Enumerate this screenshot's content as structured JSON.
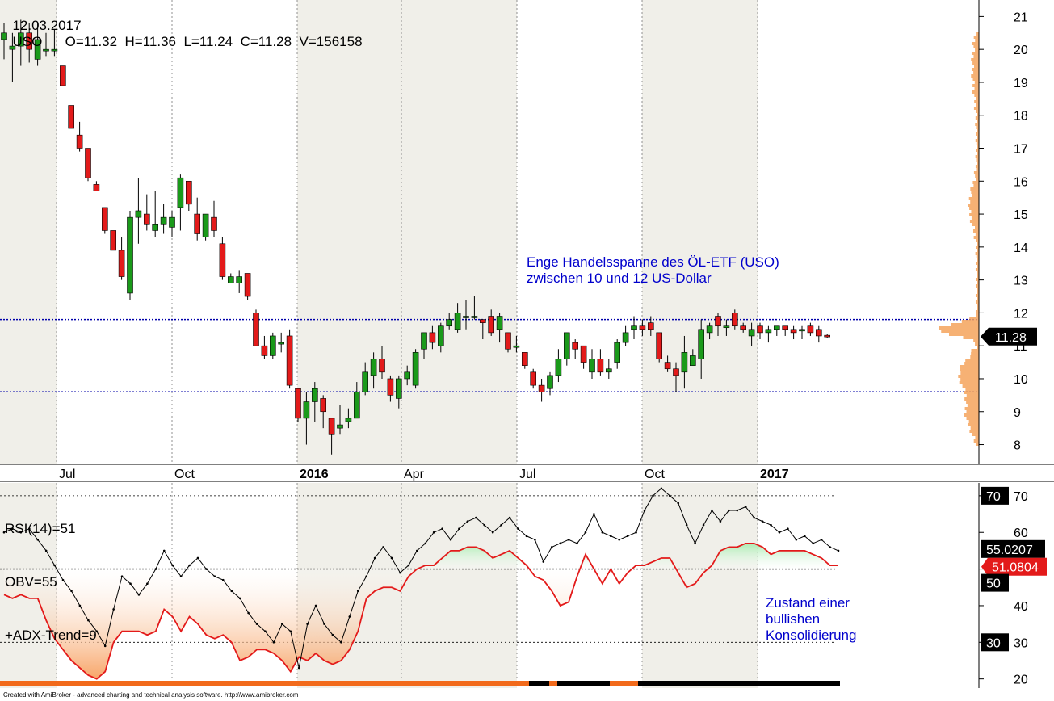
{
  "header": {
    "date": "12.03.2017",
    "symbol": "USO",
    "open": "O=11.32",
    "high": "H=11.36",
    "low": "L=11.24",
    "close": "C=11.28",
    "volume": "V=156158"
  },
  "annotations": {
    "range_line1": "Enge Handelsspanne des ÖL-ETF (USO)",
    "range_line2": "zwischen 10 und 12 US-Dollar",
    "state_line1": "Zustand einer",
    "state_line2": "bullishen",
    "state_line3": "Konsolidierung"
  },
  "indicator_labels": {
    "rsi": "RSI(14)=51",
    "obv": "OBV=55",
    "adx": "+ADX-Trend=9"
  },
  "footer": "Created with AmiBroker - advanced charting and technical analysis software. http://www.amibroker.com",
  "colors": {
    "up": "#1a9a1a",
    "down": "#e31a1a",
    "band_shade": "#f0efe9",
    "dotted_blue": "#0000aa",
    "annotation": "#0000cc",
    "volume_profile": "#f5a35c",
    "rsi_line": "#e31a1a",
    "obv_line": "#000000",
    "fill_below": "#f7a060",
    "fill_above": "#a8ecb0"
  },
  "chart_data": [
    {
      "type": "candlestick",
      "symbol": "USO",
      "x_labels": [
        "Jul",
        "Oct",
        "2016",
        "Apr",
        "Jul",
        "Oct",
        "2017"
      ],
      "y_ticks": [
        8,
        9,
        10,
        11,
        12,
        13,
        14,
        15,
        16,
        17,
        18,
        19,
        20,
        21
      ],
      "ylim": [
        7.4,
        21.5
      ],
      "current_price_label": "11.28",
      "horizontal_lines": [
        11.8,
        9.6
      ],
      "candles": [
        [
          20.3,
          20.8,
          19.7,
          20.5
        ],
        [
          20.0,
          20.5,
          19.0,
          20.1
        ],
        [
          20.1,
          20.9,
          19.5,
          20.5
        ],
        [
          20.5,
          20.8,
          19.6,
          20.0
        ],
        [
          19.7,
          20.8,
          19.5,
          20.3
        ],
        [
          20.0,
          20.5,
          19.8,
          20.0
        ],
        [
          20.0,
          20.6,
          19.8,
          20.0
        ],
        [
          19.5,
          19.5,
          18.9,
          18.9
        ],
        [
          18.3,
          18.3,
          17.6,
          17.6
        ],
        [
          17.4,
          17.8,
          16.9,
          17.0
        ],
        [
          17.0,
          17.0,
          16.0,
          16.1
        ],
        [
          15.9,
          16.0,
          15.7,
          15.7
        ],
        [
          15.2,
          15.2,
          14.4,
          14.5
        ],
        [
          14.5,
          14.5,
          13.9,
          13.9
        ],
        [
          13.9,
          14.3,
          13.0,
          13.1
        ],
        [
          12.6,
          15.1,
          12.4,
          14.9
        ],
        [
          14.9,
          16.1,
          14.1,
          15.1
        ],
        [
          15.0,
          15.6,
          14.5,
          14.7
        ],
        [
          14.5,
          15.7,
          14.3,
          14.7
        ],
        [
          14.7,
          15.3,
          14.4,
          14.9
        ],
        [
          14.6,
          15.1,
          14.3,
          14.9
        ],
        [
          15.2,
          16.2,
          14.5,
          16.1
        ],
        [
          16.0,
          16.0,
          15.1,
          15.3
        ],
        [
          15.0,
          15.5,
          14.2,
          14.4
        ],
        [
          14.3,
          15.0,
          14.2,
          15.0
        ],
        [
          14.9,
          15.4,
          14.3,
          14.5
        ],
        [
          14.1,
          14.3,
          13.0,
          13.1
        ],
        [
          12.9,
          13.2,
          12.9,
          13.1
        ],
        [
          12.9,
          13.3,
          12.6,
          13.1
        ],
        [
          13.2,
          13.2,
          12.4,
          12.5
        ],
        [
          12.0,
          12.1,
          11.0,
          11.0
        ],
        [
          11.0,
          11.3,
          10.6,
          10.7
        ],
        [
          10.7,
          11.4,
          10.6,
          11.3
        ],
        [
          11.1,
          11.4,
          10.8,
          11.1
        ],
        [
          11.3,
          11.5,
          9.7,
          9.8
        ],
        [
          9.7,
          9.7,
          8.7,
          8.8
        ],
        [
          8.8,
          9.6,
          8.0,
          9.3
        ],
        [
          9.3,
          9.9,
          8.7,
          9.7
        ],
        [
          9.4,
          9.5,
          8.5,
          9.0
        ],
        [
          8.8,
          8.8,
          7.7,
          8.3
        ],
        [
          8.5,
          9.2,
          8.3,
          8.6
        ],
        [
          8.7,
          9.1,
          8.5,
          8.8
        ],
        [
          8.8,
          9.9,
          8.8,
          9.6
        ],
        [
          9.6,
          10.5,
          9.5,
          10.2
        ],
        [
          10.1,
          10.8,
          9.7,
          10.6
        ],
        [
          10.6,
          11.0,
          10.0,
          10.2
        ],
        [
          10.0,
          10.1,
          9.3,
          9.5
        ],
        [
          9.4,
          10.1,
          9.1,
          10.0
        ],
        [
          10.0,
          10.4,
          9.8,
          10.2
        ],
        [
          9.8,
          10.9,
          9.7,
          10.8
        ],
        [
          10.9,
          11.4,
          10.6,
          11.4
        ],
        [
          11.4,
          11.6,
          10.9,
          11.1
        ],
        [
          11.0,
          11.7,
          10.8,
          11.6
        ],
        [
          11.6,
          12.0,
          11.5,
          11.8
        ],
        [
          11.5,
          12.3,
          11.4,
          12.0
        ],
        [
          11.9,
          12.4,
          11.5,
          11.9
        ],
        [
          11.9,
          12.5,
          11.8,
          11.9
        ],
        [
          11.8,
          11.8,
          11.2,
          11.7
        ],
        [
          11.9,
          12.1,
          11.3,
          11.4
        ],
        [
          11.5,
          12.0,
          11.1,
          11.9
        ],
        [
          11.4,
          11.4,
          10.8,
          10.9
        ],
        [
          11.0,
          11.3,
          10.8,
          11.0
        ],
        [
          10.8,
          10.8,
          10.3,
          10.4
        ],
        [
          10.2,
          10.3,
          9.7,
          9.8
        ],
        [
          9.8,
          10.0,
          9.3,
          9.6
        ],
        [
          9.7,
          10.2,
          9.5,
          10.1
        ],
        [
          10.1,
          10.9,
          9.9,
          10.6
        ],
        [
          10.6,
          11.4,
          10.4,
          11.4
        ],
        [
          11.1,
          11.2,
          10.6,
          10.9
        ],
        [
          11.0,
          11.0,
          10.3,
          10.5
        ],
        [
          10.2,
          10.9,
          10.0,
          10.6
        ],
        [
          10.6,
          10.9,
          10.1,
          10.2
        ],
        [
          10.2,
          10.6,
          10.0,
          10.3
        ],
        [
          10.5,
          11.2,
          10.3,
          11.1
        ],
        [
          11.1,
          11.6,
          11.0,
          11.4
        ],
        [
          11.5,
          11.9,
          11.2,
          11.6
        ],
        [
          11.6,
          11.8,
          11.3,
          11.5
        ],
        [
          11.7,
          11.9,
          11.3,
          11.5
        ],
        [
          11.4,
          11.4,
          10.5,
          10.6
        ],
        [
          10.5,
          10.7,
          10.2,
          10.3
        ],
        [
          10.3,
          10.5,
          9.6,
          10.1
        ],
        [
          10.2,
          11.3,
          9.7,
          10.8
        ],
        [
          10.4,
          10.9,
          10.4,
          10.7
        ],
        [
          10.6,
          11.8,
          10.0,
          11.5
        ],
        [
          11.4,
          11.7,
          11.2,
          11.6
        ],
        [
          11.9,
          12.0,
          11.3,
          11.6
        ],
        [
          11.6,
          11.8,
          11.3,
          11.6
        ],
        [
          12.0,
          12.1,
          11.5,
          11.6
        ],
        [
          11.6,
          11.7,
          11.4,
          11.5
        ],
        [
          11.3,
          11.7,
          11.0,
          11.5
        ],
        [
          11.6,
          11.7,
          11.2,
          11.4
        ],
        [
          11.4,
          11.6,
          11.1,
          11.5
        ],
        [
          11.5,
          11.6,
          11.3,
          11.6
        ],
        [
          11.6,
          11.6,
          11.3,
          11.5
        ],
        [
          11.5,
          11.6,
          11.2,
          11.4
        ],
        [
          11.5,
          11.6,
          11.2,
          11.5
        ],
        [
          11.6,
          11.7,
          11.3,
          11.4
        ],
        [
          11.5,
          11.6,
          11.1,
          11.3
        ],
        [
          11.32,
          11.36,
          11.24,
          11.28
        ]
      ]
    },
    {
      "type": "line",
      "title": "RSI(14) / OBV / +ADX-Trend",
      "y_ticks": [
        20,
        30,
        40,
        50,
        60,
        70
      ],
      "ylim": [
        17.5,
        73.5
      ],
      "reference_lines": [
        70,
        50,
        30
      ],
      "value_labels": [
        "70",
        "55.0207",
        "51.0804",
        "50",
        "30"
      ],
      "series": [
        {
          "name": "OBV",
          "values": [
            60,
            61,
            60,
            61,
            58,
            55,
            51,
            47,
            44,
            40,
            36,
            33,
            29,
            39,
            48,
            46,
            43,
            46,
            50,
            55,
            51,
            48,
            51,
            53,
            50,
            48,
            47,
            44,
            42,
            38,
            35,
            33,
            30,
            35,
            33,
            23,
            35,
            40,
            35,
            32,
            30,
            37,
            44,
            48,
            53,
            56,
            53,
            49,
            51,
            55,
            57,
            60,
            61,
            58,
            61,
            63,
            64,
            62,
            60,
            62,
            64,
            61,
            59,
            58,
            52,
            56,
            57,
            58,
            57,
            60,
            65,
            60,
            59,
            58,
            59,
            60,
            66,
            70,
            72,
            70,
            68,
            62,
            57,
            62,
            66,
            63,
            66,
            66,
            67,
            64,
            63,
            62,
            60,
            61,
            58,
            59,
            57,
            58,
            56,
            55
          ]
        },
        {
          "name": "RSI(14)",
          "values": [
            43,
            42,
            43,
            42,
            42,
            36,
            31,
            28,
            25,
            23,
            21,
            20,
            22,
            30,
            33,
            33,
            33,
            32,
            33,
            39,
            37,
            33,
            37,
            35,
            32,
            31,
            32,
            30,
            25,
            26,
            28,
            28,
            27,
            25,
            22,
            26,
            25,
            27,
            25,
            24,
            25,
            28,
            33,
            42,
            44,
            45,
            45,
            44,
            48,
            50,
            51,
            51,
            53,
            55,
            55,
            56,
            56,
            55,
            53,
            54,
            55,
            53,
            51,
            48,
            47,
            44,
            40,
            41,
            48,
            54,
            50,
            46,
            50,
            46,
            49,
            51,
            51,
            52,
            53,
            53,
            49,
            45,
            46,
            49,
            51,
            55,
            56,
            56,
            57,
            57,
            56,
            54,
            55,
            55,
            55,
            55,
            54,
            53,
            51,
            51
          ]
        },
        {
          "name": "+ADX-Trend",
          "values": []
        }
      ]
    }
  ]
}
